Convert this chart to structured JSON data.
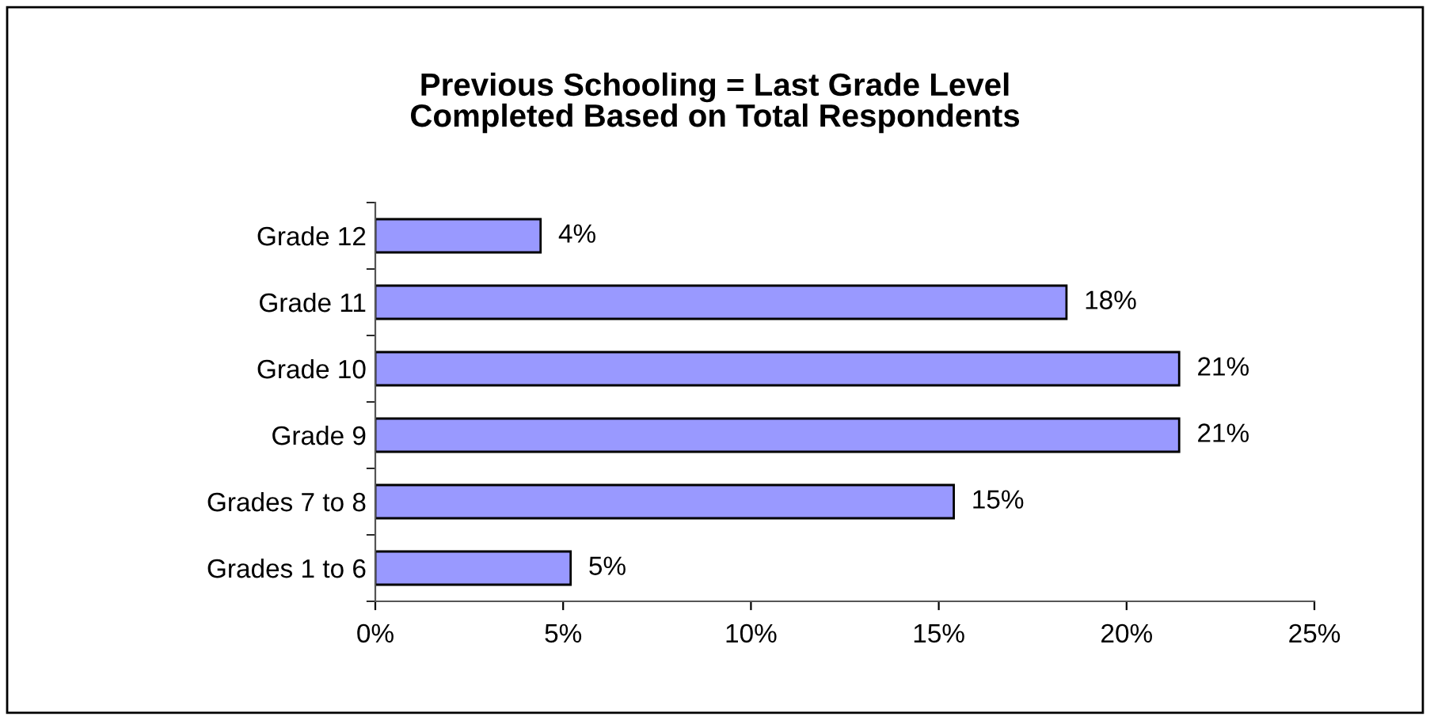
{
  "chart_data": {
    "type": "bar",
    "orientation": "horizontal",
    "title": "Previous Schooling = Last Grade Level\nCompleted Based on Total Respondents",
    "categories": [
      "Grade 12",
      "Grade 11",
      "Grade 10",
      "Grade 9",
      "Grades 7 to 8",
      "Grades 1 to 6"
    ],
    "values": [
      4.4,
      18.4,
      21.4,
      21.4,
      15.4,
      5.2
    ],
    "value_labels": [
      "4%",
      "18%",
      "21%",
      "21%",
      "15%",
      "5%"
    ],
    "color": "#9999ff",
    "xlim": [
      0,
      25
    ],
    "xticks": [
      {
        "value": 0,
        "label": "0%"
      },
      {
        "value": 5,
        "label": "5%"
      },
      {
        "value": 10,
        "label": "10%"
      },
      {
        "value": 15,
        "label": "15%"
      },
      {
        "value": 20,
        "label": "20%"
      },
      {
        "value": 25,
        "label": "25%"
      }
    ],
    "grid": false
  }
}
